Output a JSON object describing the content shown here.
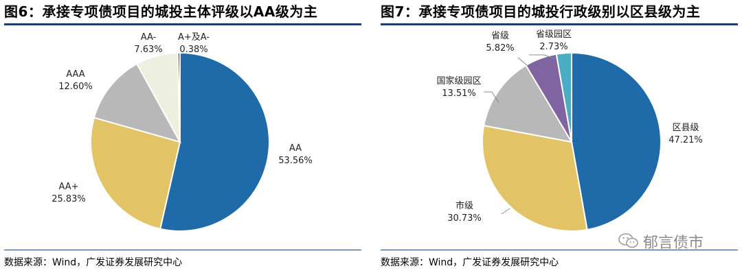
{
  "charts": [
    {
      "title": "图6：承接专项债项目的城投主体评级以AA级为主",
      "source": "数据来源：Wind，广发证券发展研究中心",
      "chart_data": {
        "type": "pie",
        "slices": [
          {
            "label": "AA",
            "value": 53.56,
            "pct": "53.56%",
            "color": "#1f6aa8"
          },
          {
            "label": "AA+",
            "value": 25.83,
            "pct": "25.83%",
            "color": "#e2c466"
          },
          {
            "label": "AAA",
            "value": 12.6,
            "pct": "12.60%",
            "color": "#b8b8b8"
          },
          {
            "label": "AA-",
            "value": 7.63,
            "pct": "7.63%",
            "color": "#edf0de"
          },
          {
            "label": "A+及A-",
            "value": 0.38,
            "pct": "0.38%",
            "color": "#2c2c2c"
          }
        ]
      }
    },
    {
      "title": "图7：承接专项债项目的城投行政级别以区县级为主",
      "source": "数据来源：Wind，广发证券发展研究中心",
      "chart_data": {
        "type": "pie",
        "slices": [
          {
            "label": "区县级",
            "value": 47.21,
            "pct": "47.21%",
            "color": "#1f6aa8"
          },
          {
            "label": "市级",
            "value": 30.73,
            "pct": "30.73%",
            "color": "#e2c466"
          },
          {
            "label": "国家级园区",
            "value": 13.51,
            "pct": "13.51%",
            "color": "#b8b8b8"
          },
          {
            "label": "省级",
            "value": 5.82,
            "pct": "5.82%",
            "color": "#8064a2"
          },
          {
            "label": "省级园区",
            "value": 2.73,
            "pct": "2.73%",
            "color": "#4bacc6"
          }
        ]
      }
    }
  ],
  "watermark": "郁言债市"
}
